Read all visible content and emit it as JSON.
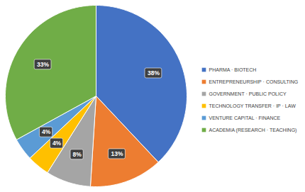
{
  "chart_data": {
    "type": "pie",
    "categories": [
      "PHARMA · BIOTECH",
      "ENTREPRENEURSHIP · CONSULTING",
      "GOVERNMENT · PUBLIC POLICY",
      "TECHNOLOGY TRANSFER · IP · LAW",
      "VENTURE CAPITAL · FINANCE",
      "ACADEMIA (RESEARCH · TEACHING)"
    ],
    "values": [
      38,
      13,
      8,
      4,
      4,
      33
    ],
    "value_labels": [
      "38%",
      "13%",
      "8%",
      "4%",
      "4%",
      "33%"
    ],
    "colors": [
      "#4472c4",
      "#ed7d31",
      "#a5a5a5",
      "#ffc000",
      "#5b9bd5",
      "#70ad47"
    ],
    "data_labels": true,
    "legend": "right"
  }
}
